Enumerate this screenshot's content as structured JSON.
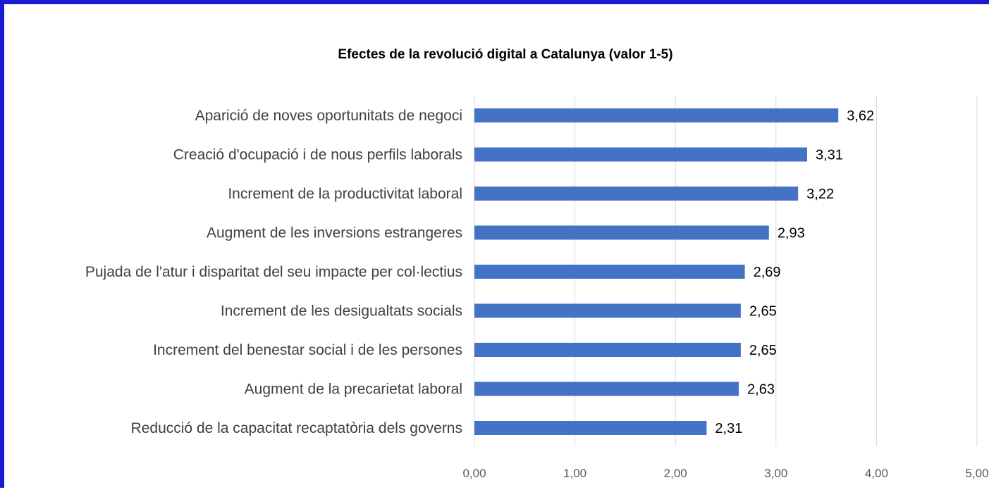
{
  "chart_data": {
    "type": "bar",
    "orientation": "horizontal",
    "title": "Efectes de la revolució digital a Catalunya (valor 1-5)",
    "categories": [
      "Aparició de noves oportunitats de negoci",
      "Creació d'ocupació i de nous perfils laborals",
      "Increment de la productivitat laboral",
      "Augment de les inversions estrangeres",
      "Pujada de l'atur i disparitat del seu impacte per col·lectius",
      "Increment de les desigualtats socials",
      "Increment del benestar social i de les persones",
      "Augment de la precarietat laboral",
      "Reducció de la capacitat recaptatòria dels governs"
    ],
    "values": [
      3.62,
      3.31,
      3.22,
      2.93,
      2.69,
      2.65,
      2.65,
      2.63,
      2.31
    ],
    "value_labels": [
      "3,62",
      "3,31",
      "3,22",
      "2,93",
      "2,69",
      "2,65",
      "2,65",
      "2,63",
      "2,31"
    ],
    "xlim": [
      0,
      5
    ],
    "xticks": [
      0,
      1,
      2,
      3,
      4,
      5
    ],
    "xtick_labels": [
      "0,00",
      "1,00",
      "2,00",
      "3,00",
      "4,00",
      "5,00"
    ],
    "grid": true,
    "colors": {
      "bar": "#4472c4",
      "grid": "#d9d9d9",
      "frame": "#1a1ad6"
    }
  }
}
